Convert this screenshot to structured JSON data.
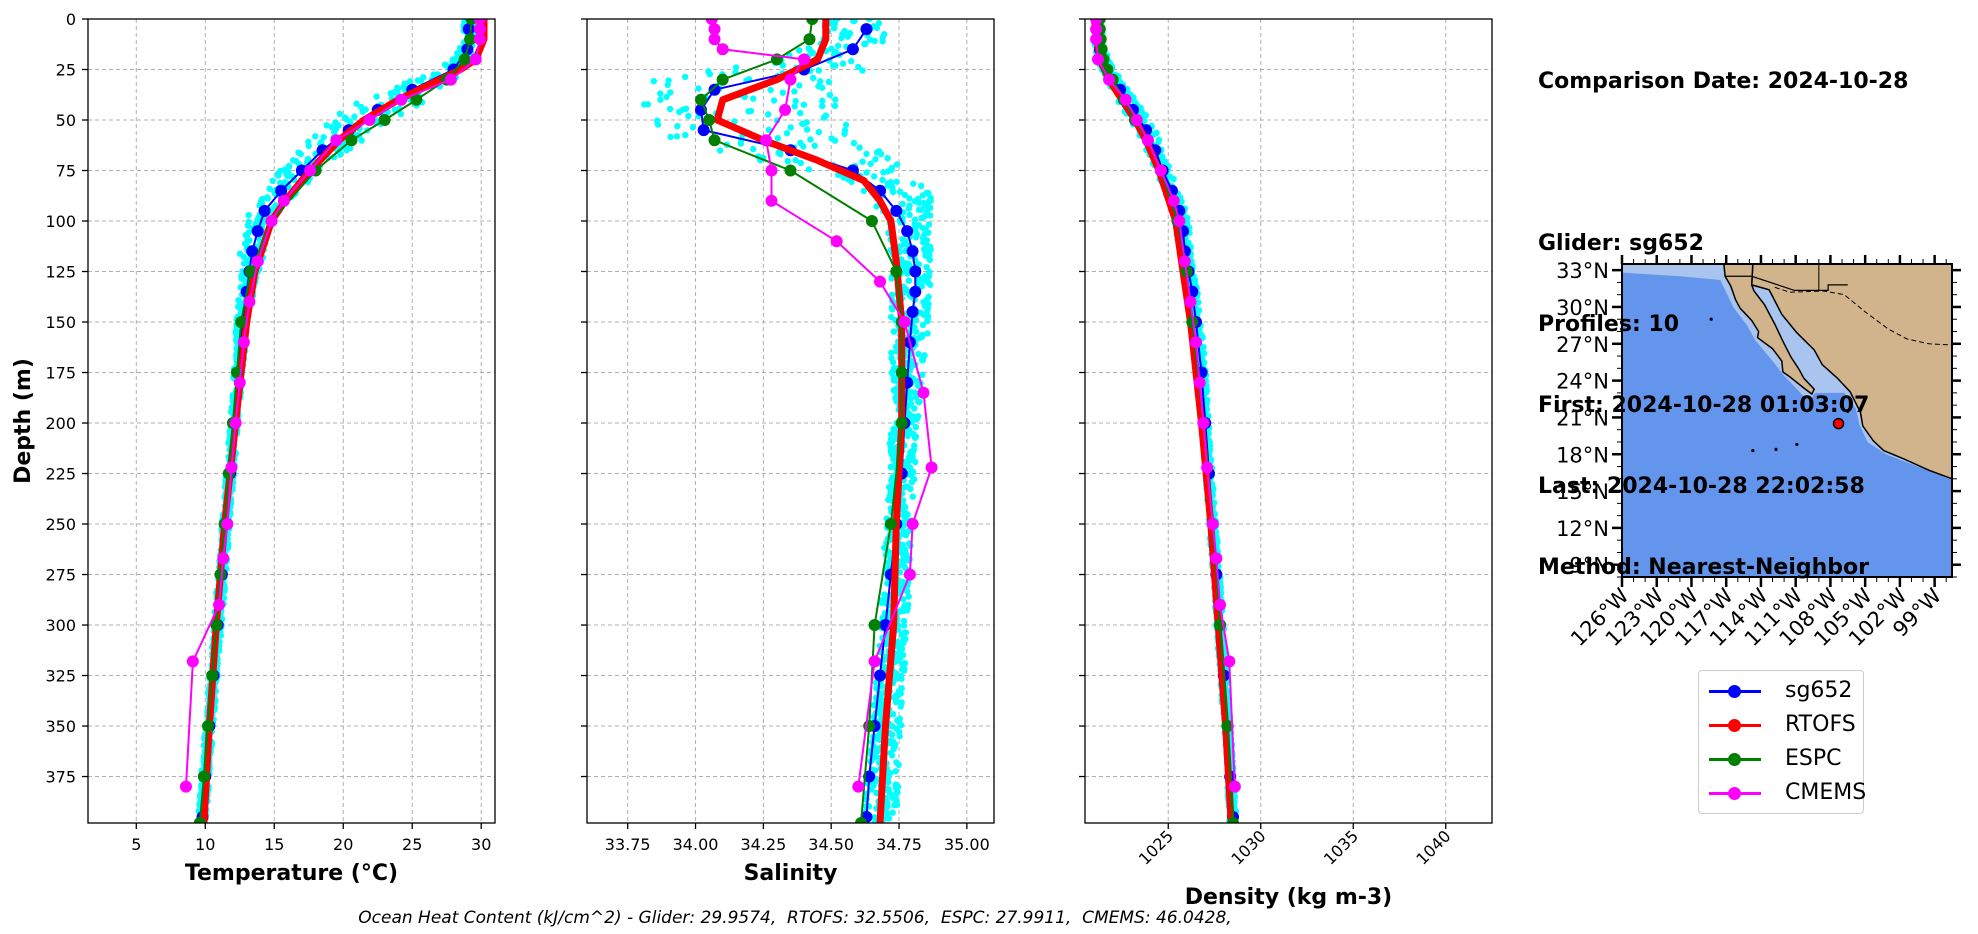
{
  "info": {
    "lines": [
      "Comparison Date: 2024-10-28",
      "",
      "Glider: sg652",
      "Profiles: 10",
      "First: 2024-10-28 01:03:07",
      "Last: 2024-10-28 22:02:58",
      "Method: Nearest-Neighbor"
    ]
  },
  "footer": "Ocean Heat Content (kJ/cm^2) - Glider: 29.9574,  RTOFS: 32.5506,  ESPC: 27.9911,  CMEMS: 46.0428,",
  "legend": [
    {
      "name": "sg652",
      "color": "#0000ff"
    },
    {
      "name": "RTOFS",
      "color": "#ff0000"
    },
    {
      "name": "ESPC",
      "color": "#008000"
    },
    {
      "name": "CMEMS",
      "color": "#ff00ff"
    }
  ],
  "colors": {
    "glider_scatter": "#00ffff",
    "ocean": "#6495ed",
    "shelf": "#a9c4ee",
    "land": "#d2b48c",
    "marker": "#ff0000"
  },
  "chart_data": [
    {
      "type": "line",
      "xlabel": "Temperature (°C)",
      "ylabel": "Depth (m)",
      "xlim": [
        1.5,
        31
      ],
      "ylim": [
        398,
        0
      ],
      "xticks": [
        5,
        10,
        15,
        20,
        25,
        30
      ],
      "yticks": [
        0,
        25,
        50,
        75,
        100,
        125,
        150,
        175,
        200,
        225,
        250,
        275,
        300,
        325,
        350,
        375
      ],
      "grid": true,
      "scatter": {
        "name": "sg652 samples",
        "depth": [
          5,
          20,
          30,
          40,
          50,
          60,
          70,
          80,
          90,
          100,
          110,
          120,
          130,
          140,
          160,
          190,
          230,
          270,
          310,
          350,
          395
        ],
        "spread": [
          0.5,
          0.6,
          1.5,
          2.5,
          2.5,
          2.0,
          1.5,
          1.5,
          1.2,
          1.0,
          1.0,
          0.8,
          0.6,
          0.5,
          0.4,
          0.3,
          0.3,
          0.3,
          0.3,
          0.3,
          0.3
        ]
      },
      "series": [
        {
          "name": "sg652",
          "depth": [
            5,
            15,
            25,
            35,
            45,
            55,
            65,
            75,
            85,
            95,
            105,
            115,
            125,
            135,
            150,
            175,
            200,
            225,
            250,
            275,
            300,
            325,
            350,
            375,
            395
          ],
          "values": [
            29.1,
            29.0,
            28.0,
            25.0,
            22.5,
            20.4,
            18.5,
            17.0,
            15.5,
            14.3,
            13.8,
            13.4,
            13.2,
            13.0,
            12.7,
            12.4,
            12.1,
            11.8,
            11.5,
            11.2,
            10.9,
            10.6,
            10.3,
            10.0,
            9.8
          ]
        },
        {
          "name": "RTOFS",
          "depth": [
            0,
            10,
            20,
            25,
            30,
            40,
            50,
            60,
            70,
            80,
            90,
            100,
            125,
            150,
            200,
            250,
            300,
            350,
            398
          ],
          "values": [
            30.2,
            30.2,
            29.6,
            28.5,
            27.0,
            24.0,
            21.5,
            19.7,
            18.3,
            17.0,
            15.8,
            14.8,
            13.6,
            13.0,
            12.2,
            11.4,
            10.8,
            10.3,
            9.9
          ]
        },
        {
          "name": "ESPC",
          "depth": [
            0,
            10,
            20,
            30,
            40,
            50,
            60,
            75,
            100,
            125,
            150,
            175,
            200,
            225,
            250,
            275,
            300,
            325,
            350,
            375,
            398
          ],
          "values": [
            29.3,
            29.2,
            28.8,
            27.5,
            25.3,
            23.0,
            20.6,
            18.0,
            14.8,
            13.3,
            12.6,
            12.3,
            12.0,
            11.7,
            11.4,
            11.1,
            10.8,
            10.5,
            10.2,
            9.9,
            9.6
          ]
        },
        {
          "name": "CMEMS",
          "depth": [
            0,
            5,
            10,
            20,
            30,
            40,
            50,
            60,
            75,
            90,
            100,
            120,
            140,
            160,
            180,
            200,
            222,
            250,
            267,
            290,
            318,
            380
          ],
          "values": [
            29.9,
            29.9,
            29.9,
            29.6,
            27.8,
            24.2,
            21.9,
            19.5,
            17.6,
            15.7,
            14.8,
            13.8,
            13.2,
            12.8,
            12.5,
            12.2,
            11.9,
            11.6,
            11.3,
            11.0,
            9.1,
            8.6
          ]
        }
      ]
    },
    {
      "type": "line",
      "xlabel": "Salinity",
      "ylabel": "",
      "xlim": [
        33.6,
        35.1
      ],
      "ylim": [
        398,
        0
      ],
      "xticks": [
        33.75,
        34.0,
        34.25,
        34.5,
        34.75,
        35.0
      ],
      "xticklabels": [
        "33.75",
        "34.00",
        "34.25",
        "34.50",
        "34.75",
        "35.00"
      ],
      "grid": true,
      "scatter": {
        "name": "sg652 samples",
        "depth": [
          0,
          10,
          20,
          30,
          40,
          50,
          60,
          70,
          80,
          90,
          100,
          120,
          150,
          200,
          250,
          300,
          350,
          398
        ],
        "min": [
          34.45,
          34.45,
          34.3,
          33.85,
          33.8,
          33.8,
          33.85,
          34.25,
          34.55,
          34.65,
          34.7,
          34.72,
          34.72,
          34.72,
          34.7,
          34.68,
          34.65,
          34.62
        ],
        "max": [
          34.7,
          34.7,
          34.65,
          34.6,
          34.55,
          34.55,
          34.6,
          34.75,
          34.85,
          34.87,
          34.87,
          34.87,
          34.86,
          34.82,
          34.8,
          34.78,
          34.76,
          34.74
        ]
      },
      "series": [
        {
          "name": "sg652",
          "depth": [
            5,
            15,
            25,
            35,
            45,
            55,
            65,
            75,
            85,
            95,
            105,
            115,
            125,
            135,
            145,
            160,
            180,
            200,
            225,
            250,
            275,
            300,
            325,
            350,
            375,
            395
          ],
          "values": [
            34.63,
            34.58,
            34.4,
            34.07,
            34.02,
            34.03,
            34.35,
            34.58,
            34.68,
            34.74,
            34.78,
            34.8,
            34.81,
            34.81,
            34.8,
            34.79,
            34.78,
            34.77,
            34.76,
            34.74,
            34.72,
            34.7,
            34.68,
            34.66,
            34.64,
            34.63
          ]
        },
        {
          "name": "RTOFS",
          "depth": [
            0,
            10,
            20,
            30,
            40,
            50,
            60,
            70,
            80,
            90,
            100,
            120,
            150,
            200,
            250,
            300,
            350,
            398
          ],
          "values": [
            34.48,
            34.48,
            34.45,
            34.3,
            34.1,
            34.08,
            34.25,
            34.45,
            34.62,
            34.68,
            34.72,
            34.74,
            34.76,
            34.76,
            34.74,
            34.73,
            34.7,
            34.68
          ]
        },
        {
          "name": "ESPC",
          "depth": [
            0,
            10,
            20,
            30,
            40,
            50,
            60,
            75,
            100,
            125,
            150,
            175,
            200,
            250,
            300,
            350,
            398
          ],
          "values": [
            34.43,
            34.42,
            34.3,
            34.1,
            34.02,
            34.05,
            34.07,
            34.35,
            34.65,
            34.74,
            34.76,
            34.76,
            34.76,
            34.72,
            34.66,
            34.64,
            34.61
          ]
        },
        {
          "name": "CMEMS",
          "depth": [
            0,
            5,
            10,
            15,
            20,
            30,
            45,
            60,
            75,
            90,
            110,
            130,
            150,
            185,
            222,
            250,
            275,
            318,
            380
          ],
          "values": [
            34.06,
            34.07,
            34.07,
            34.1,
            34.4,
            34.35,
            34.33,
            34.26,
            34.28,
            34.28,
            34.52,
            34.68,
            34.77,
            34.84,
            34.87,
            34.8,
            34.79,
            34.66,
            34.6
          ]
        }
      ]
    },
    {
      "type": "line",
      "xlabel": "Density (kg m-3)",
      "ylabel": "",
      "xlim": [
        1020.5,
        1042.5
      ],
      "ylim": [
        398,
        0
      ],
      "xticks": [
        1025,
        1030,
        1035,
        1040
      ],
      "grid": true,
      "scatter": {
        "name": "sg652 samples",
        "depth": [
          0,
          20,
          40,
          60,
          80,
          100,
          120,
          150,
          200,
          250,
          300,
          350,
          398
        ],
        "spread": [
          0.2,
          0.3,
          0.5,
          0.5,
          0.4,
          0.4,
          0.3,
          0.3,
          0.2,
          0.2,
          0.2,
          0.2,
          0.2
        ]
      },
      "series": [
        {
          "name": "sg652",
          "depth": [
            5,
            15,
            25,
            35,
            45,
            55,
            65,
            75,
            85,
            95,
            105,
            115,
            125,
            135,
            150,
            175,
            200,
            225,
            250,
            275,
            300,
            325,
            350,
            375,
            395
          ],
          "values": [
            1021.2,
            1021.3,
            1021.7,
            1022.4,
            1023.1,
            1023.8,
            1024.3,
            1024.7,
            1025.2,
            1025.6,
            1025.8,
            1025.9,
            1026.1,
            1026.3,
            1026.5,
            1026.8,
            1027.0,
            1027.2,
            1027.4,
            1027.6,
            1027.8,
            1028.0,
            1028.2,
            1028.35,
            1028.5
          ]
        },
        {
          "name": "RTOFS",
          "depth": [
            0,
            20,
            30,
            40,
            50,
            60,
            75,
            100,
            125,
            150,
            200,
            250,
            300,
            350,
            398
          ],
          "values": [
            1021.0,
            1021.3,
            1021.8,
            1022.5,
            1023.2,
            1023.8,
            1024.5,
            1025.4,
            1025.8,
            1026.2,
            1026.8,
            1027.3,
            1027.7,
            1028.1,
            1028.4
          ]
        },
        {
          "name": "ESPC",
          "depth": [
            0,
            5,
            10,
            15,
            20,
            25,
            30,
            40,
            50,
            60,
            75,
            100,
            125,
            150,
            200,
            250,
            300,
            350,
            398
          ],
          "values": [
            1021.3,
            1021.3,
            1021.35,
            1021.4,
            1021.5,
            1021.7,
            1022.0,
            1022.6,
            1023.2,
            1023.9,
            1024.6,
            1025.5,
            1026.0,
            1026.3,
            1026.9,
            1027.4,
            1027.8,
            1028.2,
            1028.5
          ]
        },
        {
          "name": "CMEMS",
          "depth": [
            0,
            5,
            10,
            20,
            30,
            40,
            50,
            60,
            75,
            90,
            100,
            120,
            140,
            160,
            180,
            200,
            222,
            250,
            267,
            290,
            318,
            380
          ],
          "values": [
            1021.1,
            1021.1,
            1021.1,
            1021.2,
            1021.8,
            1022.7,
            1023.3,
            1023.9,
            1024.6,
            1025.3,
            1025.6,
            1025.9,
            1026.2,
            1026.5,
            1026.7,
            1026.9,
            1027.1,
            1027.4,
            1027.6,
            1027.8,
            1028.3,
            1028.6
          ]
        }
      ]
    },
    {
      "type": "map",
      "lon_ticks": [
        "126°W",
        "123°W",
        "120°W",
        "117°W",
        "114°W",
        "111°W",
        "108°W",
        "105°W",
        "102°W",
        "99°W"
      ],
      "lat_ticks": [
        "33°N",
        "30°N",
        "27°N",
        "24°N",
        "21°N",
        "18°N",
        "15°N",
        "12°N",
        "9°N"
      ],
      "lon_values": [
        -126,
        -123,
        -120,
        -117,
        -114,
        -111,
        -108,
        -105,
        -102,
        -99
      ],
      "lat_values": [
        33,
        30,
        27,
        24,
        21,
        18,
        15,
        12,
        9
      ],
      "lonlim": [
        -126,
        -97.5
      ],
      "latlim": [
        8,
        33.5
      ],
      "glider_position": {
        "lon": -107.3,
        "lat": 20.5
      }
    }
  ]
}
